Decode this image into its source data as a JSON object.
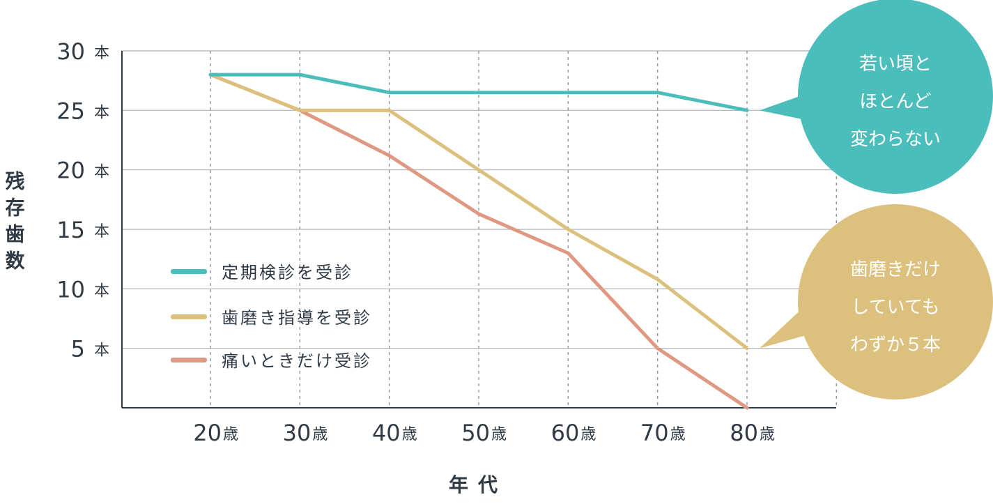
{
  "chart_data": {
    "type": "line",
    "x": [
      20,
      30,
      40,
      50,
      60,
      70,
      80
    ],
    "categories": [
      "20",
      "30",
      "40",
      "50",
      "60",
      "70",
      "80"
    ],
    "x_unit": "歳",
    "xlabel": "年代",
    "ylabel": "残存歯数",
    "y_ticks": [
      5,
      10,
      15,
      20,
      25,
      30
    ],
    "y_unit": "本",
    "ylim": [
      0,
      30
    ],
    "grid": true,
    "legend_position": "bottom-left",
    "series": [
      {
        "name": "定期検診を受診",
        "color": "#4bbdbb",
        "values": [
          28,
          28,
          26.5,
          26.5,
          26.5,
          26.5,
          25
        ]
      },
      {
        "name": "歯磨き指導を受診",
        "color": "#dcc07e",
        "values": [
          28,
          25,
          25,
          20,
          15,
          10.8,
          5
        ]
      },
      {
        "name": "痛いときだけ受診",
        "color": "#df9882",
        "values": [
          28,
          25,
          21.2,
          16.3,
          13,
          5,
          0
        ]
      }
    ],
    "annotations": [
      {
        "series": 0,
        "color": "#4bbdbb",
        "lines": [
          "若い頃と",
          "ほとんど",
          "変わらない"
        ]
      },
      {
        "series": 1,
        "color": "#dcc07e",
        "lines": [
          "歯磨きだけ",
          "していても",
          "わずか５本"
        ]
      }
    ]
  }
}
